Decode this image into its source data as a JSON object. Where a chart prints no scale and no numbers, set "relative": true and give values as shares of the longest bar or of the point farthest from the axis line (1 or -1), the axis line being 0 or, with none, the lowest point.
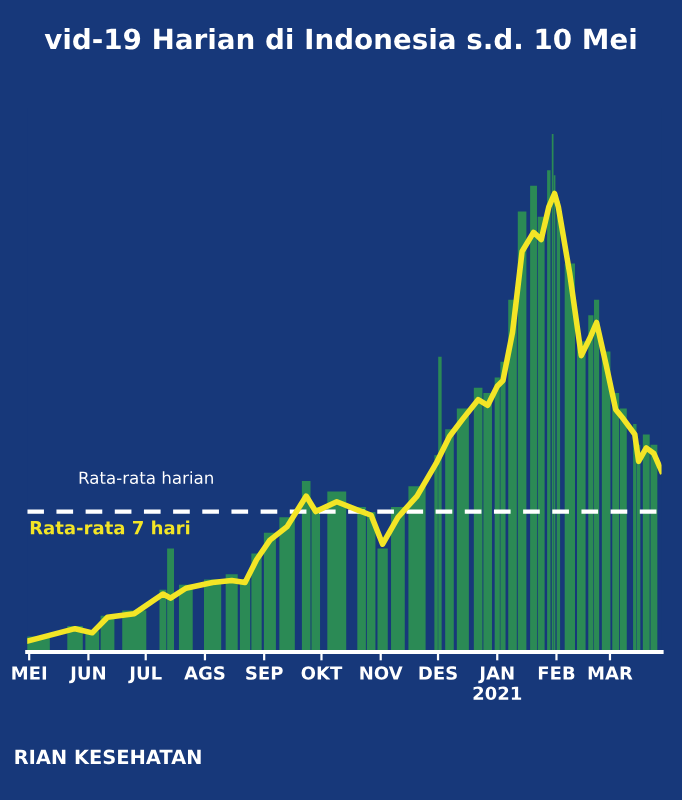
{
  "chart_data": {
    "type": "bar",
    "title": "vid-19 Harian di Indonesia s.d. 10 Mei",
    "relative": true,
    "xlim": [
      "2020-04-30",
      "2021-03-28"
    ],
    "xticks": [
      {
        "value": "2020-05-01",
        "label": "MEI"
      },
      {
        "value": "2020-06-01",
        "label": "JUN"
      },
      {
        "value": "2020-07-01",
        "label": "JUL"
      },
      {
        "value": "2020-08-01",
        "label": "AGS"
      },
      {
        "value": "2020-09-01",
        "label": "SEP"
      },
      {
        "value": "2020-10-01",
        "label": "OKT"
      },
      {
        "value": "2020-11-01",
        "label": "NOV"
      },
      {
        "value": "2020-12-01",
        "label": "DES"
      },
      {
        "value": "2021-01-01",
        "label": "JAN\n2021"
      },
      {
        "value": "2021-02-01",
        "label": "FEB"
      },
      {
        "value": "2021-03-01",
        "label": "MAR"
      }
    ],
    "series": [
      {
        "color": "#2b8a55",
        "x": [
          "2020-05-01",
          "2020-05-25",
          "2020-06-03",
          "2020-06-11",
          "2020-06-25",
          "2020-07-10",
          "2020-07-14",
          "2020-07-22",
          "2020-08-05",
          "2020-08-15",
          "2020-08-22",
          "2020-08-28",
          "2020-09-04",
          "2020-09-13",
          "2020-09-23",
          "2020-09-28",
          "2020-10-09",
          "2020-10-22",
          "2020-10-27",
          "2020-11-02",
          "2020-11-10",
          "2020-11-20",
          "2020-11-30",
          "2020-12-02",
          "2020-12-07",
          "2020-12-14",
          "2020-12-22",
          "2020-12-27",
          "2021-01-01",
          "2021-01-04",
          "2021-01-09",
          "2021-01-14",
          "2021-01-20",
          "2021-01-24",
          "2021-01-28",
          "2021-01-30",
          "2021-01-31",
          "2021-02-02",
          "2021-02-08",
          "2021-02-14",
          "2021-02-19",
          "2021-02-22",
          "2021-02-27",
          "2021-03-04",
          "2021-03-08",
          "2021-03-14",
          "2021-03-16",
          "2021-03-20",
          "2021-03-24"
        ],
        "values": [
          0.03,
          0.05,
          0.04,
          0.07,
          0.08,
          0.12,
          0.2,
          0.13,
          0.14,
          0.15,
          0.14,
          0.19,
          0.23,
          0.26,
          0.33,
          0.28,
          0.31,
          0.28,
          0.27,
          0.2,
          0.28,
          0.32,
          0.38,
          0.57,
          0.43,
          0.47,
          0.51,
          0.5,
          0.53,
          0.56,
          0.68,
          0.85,
          0.9,
          0.84,
          0.93,
          1.0,
          0.92,
          0.87,
          0.75,
          0.6,
          0.65,
          0.68,
          0.58,
          0.5,
          0.47,
          0.44,
          0.4,
          0.42,
          0.4
        ]
      },
      {
        "type": "line",
        "name": "Rata-rata 7 hari",
        "color": "#f3e526",
        "x": [
          "2020-05-01",
          "2020-05-25",
          "2020-06-03",
          "2020-06-11",
          "2020-06-25",
          "2020-07-10",
          "2020-07-14",
          "2020-07-22",
          "2020-08-05",
          "2020-08-15",
          "2020-08-22",
          "2020-08-28",
          "2020-09-04",
          "2020-09-13",
          "2020-09-23",
          "2020-09-28",
          "2020-10-09",
          "2020-10-22",
          "2020-10-27",
          "2020-11-02",
          "2020-11-10",
          "2020-11-20",
          "2020-11-30",
          "2020-12-07",
          "2020-12-14",
          "2020-12-22",
          "2020-12-27",
          "2021-01-01",
          "2021-01-04",
          "2021-01-09",
          "2021-01-14",
          "2021-01-20",
          "2021-01-24",
          "2021-01-28",
          "2021-01-31",
          "2021-02-02",
          "2021-02-08",
          "2021-02-14",
          "2021-02-19",
          "2021-02-22",
          "2021-02-27",
          "2021-03-04",
          "2021-03-08",
          "2021-03-14",
          "2021-03-16",
          "2021-03-20",
          "2021-03-24",
          "2021-03-28"
        ],
        "values": [
          0.022,
          0.045,
          0.037,
          0.067,
          0.074,
          0.112,
          0.104,
          0.123,
          0.134,
          0.138,
          0.134,
          0.178,
          0.216,
          0.242,
          0.301,
          0.271,
          0.29,
          0.271,
          0.264,
          0.208,
          0.26,
          0.301,
          0.364,
          0.416,
          0.45,
          0.487,
          0.476,
          0.513,
          0.524,
          0.617,
          0.773,
          0.81,
          0.796,
          0.859,
          0.885,
          0.859,
          0.729,
          0.572,
          0.61,
          0.636,
          0.554,
          0.468,
          0.45,
          0.42,
          0.368,
          0.394,
          0.383,
          0.349
        ]
      }
    ],
    "ref_lines": [
      {
        "axis": "y",
        "value": 0.271,
        "label": "Rata-rata harian",
        "color": "#ffffff",
        "line_style": "dashed"
      }
    ],
    "annotations": [
      "RIAN KESEHATAN"
    ],
    "grid": false,
    "legend": false
  }
}
